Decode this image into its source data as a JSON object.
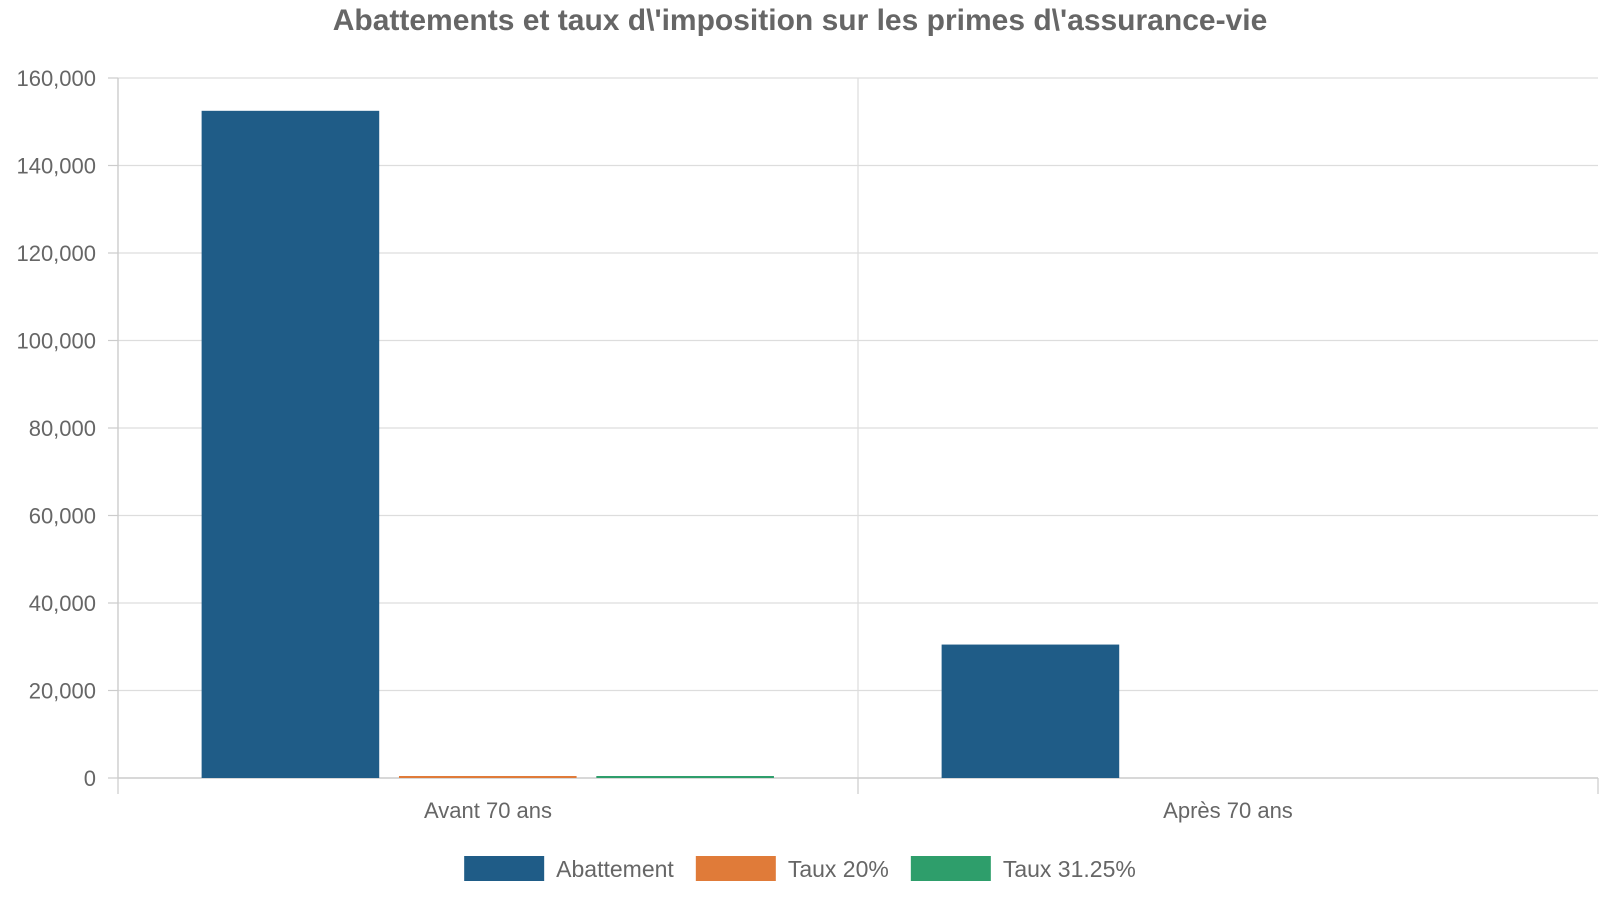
{
  "chart_data": {
    "type": "bar",
    "title": "Abattements et taux d\\'imposition sur les primes d\\'assurance-vie",
    "xlabel": "",
    "ylabel": "",
    "categories": [
      "Avant 70 ans",
      "Après 70 ans"
    ],
    "series": [
      {
        "name": "Abattement",
        "color": "#1f5c87",
        "values": [
          152500,
          30500
        ]
      },
      {
        "name": "Taux 20%",
        "color": "#e07b39",
        "values": [
          20,
          0
        ]
      },
      {
        "name": "Taux 31.25%",
        "color": "#2e9e6b",
        "values": [
          31.25,
          0
        ]
      }
    ],
    "ylim": [
      0,
      160000
    ],
    "yticks": [
      0,
      20000,
      40000,
      60000,
      80000,
      100000,
      120000,
      140000,
      160000
    ],
    "ytick_labels": [
      "0",
      "20,000",
      "40,000",
      "60,000",
      "80,000",
      "100,000",
      "120,000",
      "140,000",
      "160,000"
    ],
    "grid": true,
    "legend_position": "bottom-center"
  }
}
